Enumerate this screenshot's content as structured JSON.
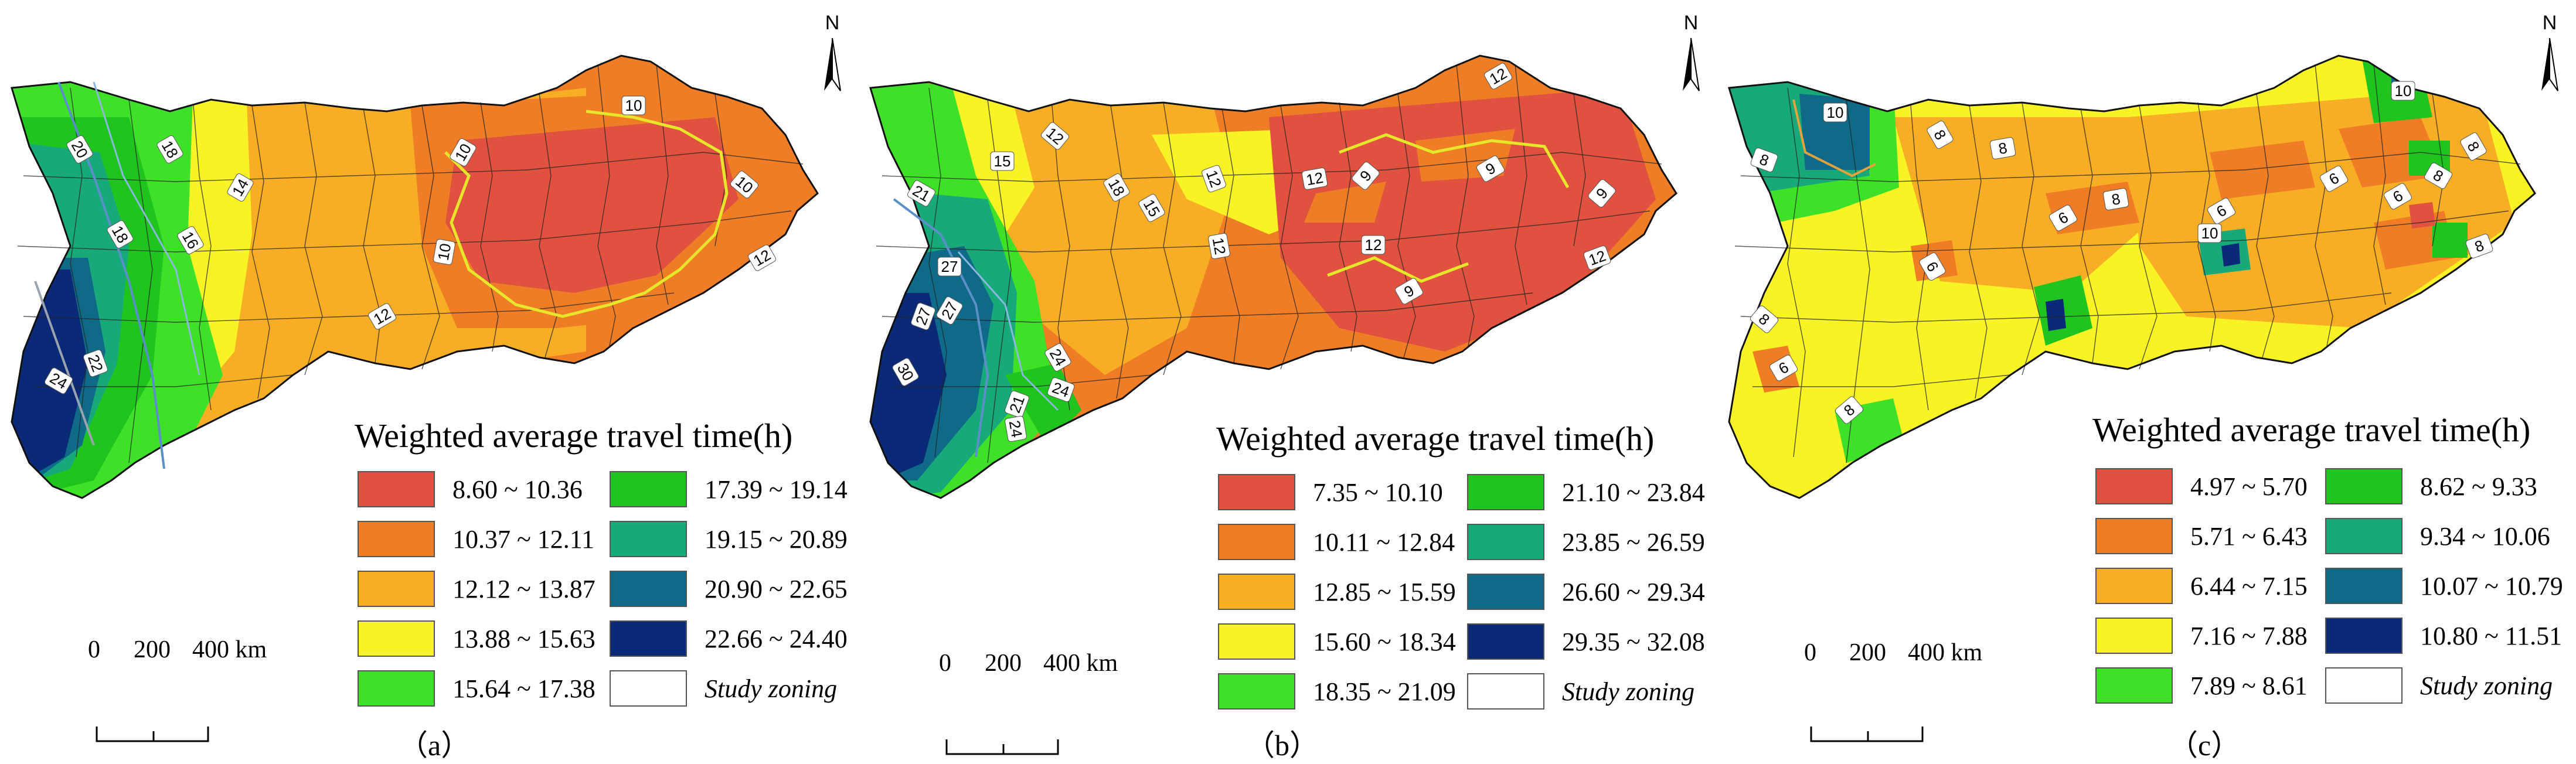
{
  "panels": [
    {
      "id": "a",
      "label": "（a）",
      "legend_title": "Weighted average travel time(h)",
      "legend": [
        {
          "range": "8.60 ~ 10.36",
          "color": "#e0523f"
        },
        {
          "range": "10.37 ~ 12.11",
          "color": "#ef7d26"
        },
        {
          "range": "12.12 ~ 13.87",
          "color": "#f8ae24"
        },
        {
          "range": "13.88 ~ 15.63",
          "color": "#f9f225"
        },
        {
          "range": "15.64 ~ 17.38",
          "color": "#3fe028"
        },
        {
          "range": "17.39 ~ 19.14",
          "color": "#1fc41f"
        },
        {
          "range": "19.15 ~ 20.89",
          "color": "#18a97b"
        },
        {
          "range": "20.90 ~ 22.65",
          "color": "#0e6a86"
        },
        {
          "range": "22.66 ~ 24.40",
          "color": "#0a2a78"
        },
        {
          "range": "Study zoning",
          "color": "#ffffff"
        }
      ],
      "contour_labels": [
        "10",
        "10",
        "10",
        "10",
        "12",
        "12",
        "14",
        "16",
        "18",
        "18",
        "20",
        "22",
        "24"
      ],
      "scale": {
        "zero": "0",
        "mid": "200",
        "end": "400 km"
      },
      "north": "N"
    },
    {
      "id": "b",
      "label": "（b）",
      "legend_title": "Weighted average travel time(h)",
      "legend": [
        {
          "range": "7.35 ~ 10.10",
          "color": "#e0523f"
        },
        {
          "range": "10.11 ~ 12.84",
          "color": "#ef7d26"
        },
        {
          "range": "12.85 ~ 15.59",
          "color": "#f8ae24"
        },
        {
          "range": "15.60 ~ 18.34",
          "color": "#f9f225"
        },
        {
          "range": "18.35 ~ 21.09",
          "color": "#3fe028"
        },
        {
          "range": "21.10 ~ 23.84",
          "color": "#1fc41f"
        },
        {
          "range": "23.85 ~ 26.59",
          "color": "#18a97b"
        },
        {
          "range": "26.60 ~ 29.34",
          "color": "#0e6a86"
        },
        {
          "range": "29.35 ~ 32.08",
          "color": "#0a2a78"
        },
        {
          "range": "Study zoning",
          "color": "#ffffff"
        }
      ],
      "contour_labels": [
        "12",
        "12",
        "12",
        "12",
        "12",
        "12",
        "12",
        "9",
        "9",
        "9",
        "9",
        "15",
        "15",
        "18",
        "21",
        "21",
        "24",
        "24",
        "24",
        "27",
        "27",
        "27",
        "30"
      ],
      "scale": {
        "zero": "0",
        "mid": "200",
        "end": "400 km"
      },
      "north": "N"
    },
    {
      "id": "c",
      "label": "（c）",
      "legend_title": "Weighted average travel time(h)",
      "legend": [
        {
          "range": "4.97 ~ 5.70",
          "color": "#e0523f"
        },
        {
          "range": "5.71 ~ 6.43",
          "color": "#ef7d26"
        },
        {
          "range": "6.44 ~ 7.15",
          "color": "#f8ae24"
        },
        {
          "range": "7.16 ~ 7.88",
          "color": "#f9f225"
        },
        {
          "range": "7.89 ~ 8.61",
          "color": "#3fe028"
        },
        {
          "range": "8.62 ~ 9.33",
          "color": "#1fc41f"
        },
        {
          "range": "9.34 ~ 10.06",
          "color": "#18a97b"
        },
        {
          "range": "10.07 ~ 10.79",
          "color": "#0e6a86"
        },
        {
          "range": "10.80 ~ 11.51",
          "color": "#0a2a78"
        },
        {
          "range": "Study zoning",
          "color": "#ffffff"
        }
      ],
      "contour_labels": [
        "10",
        "10",
        "10",
        "8",
        "8",
        "8",
        "8",
        "8",
        "8",
        "8",
        "8",
        "8",
        "6",
        "6",
        "6",
        "6",
        "6",
        "6"
      ],
      "scale": {
        "zero": "0",
        "mid": "200",
        "end": "400 km"
      },
      "north": "N"
    }
  ]
}
